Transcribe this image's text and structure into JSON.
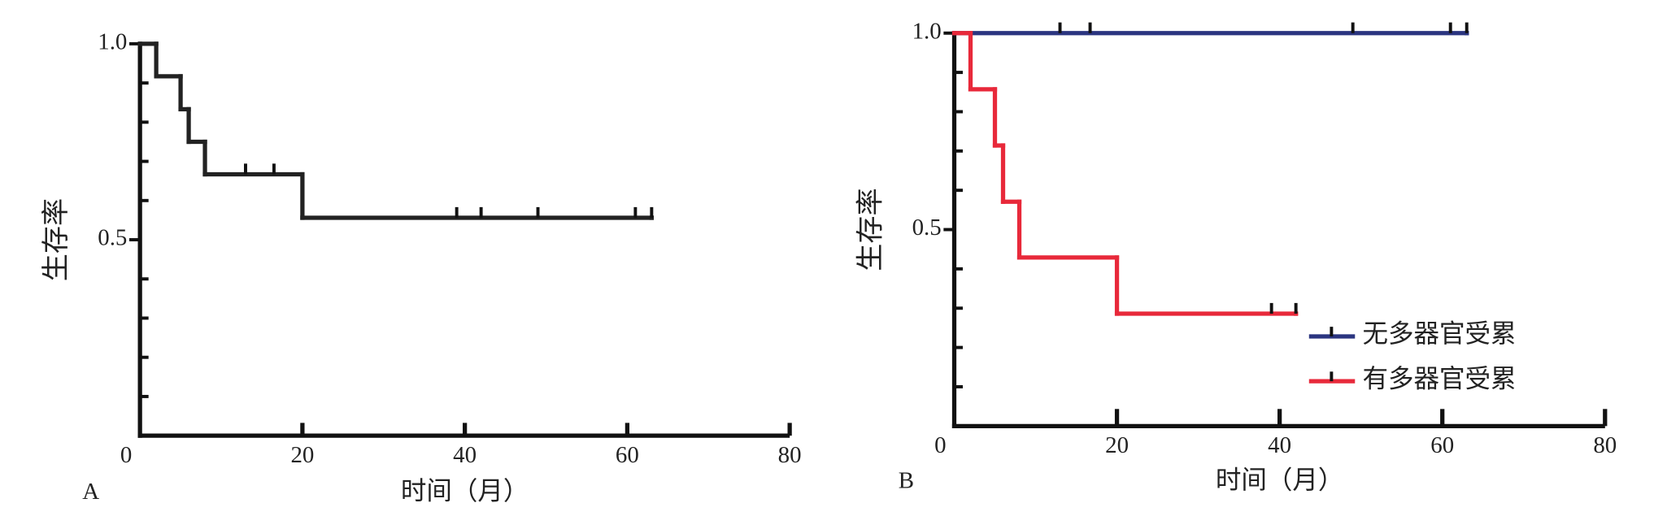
{
  "chart_data": [
    {
      "type": "line",
      "step": "post",
      "panel_label": "A",
      "xlabel": "时间（月）",
      "ylabel": "生存率",
      "xlim": [
        0,
        80
      ],
      "ylim": [
        0,
        1
      ],
      "xticks": [
        0,
        20,
        40,
        60,
        80
      ],
      "yticks": [
        0.5,
        {
          "value": 1,
          "label": "1.0"
        }
      ],
      "yminorticks": [
        0.1,
        0.2,
        0.3,
        0.4,
        0.6,
        0.7,
        0.8,
        0.9
      ],
      "series": [
        {
          "color": "#222222",
          "x": [
            0,
            2,
            5,
            6,
            8,
            20,
            63
          ],
          "values": [
            1,
            0.917,
            0.833,
            0.75,
            0.667,
            0.556,
            0.556
          ],
          "censored_x": [
            13,
            16.5,
            39,
            42,
            49,
            61,
            63
          ]
        }
      ]
    },
    {
      "type": "line",
      "step": "post",
      "panel_label": "B",
      "xlabel": "时间（月）",
      "ylabel": "生存率",
      "xlim": [
        0,
        80
      ],
      "ylim": [
        0,
        1
      ],
      "xticks": [
        0,
        20,
        40,
        60,
        80
      ],
      "yticks": [
        0.5,
        {
          "value": 1,
          "label": "1.0"
        }
      ],
      "yminorticks": [
        0.1,
        0.2,
        0.3,
        0.4,
        0.6,
        0.7,
        0.8,
        0.9
      ],
      "legend": "center right",
      "series": [
        {
          "name": "无多器官受累",
          "color": "#2b3580",
          "x": [
            0,
            63
          ],
          "values": [
            1,
            1
          ],
          "censored_x": [
            13,
            16.7,
            49,
            61,
            63
          ]
        },
        {
          "name": "有多器官受累",
          "color": "#e8293a",
          "x": [
            0,
            2,
            5,
            6,
            8,
            20,
            42
          ],
          "values": [
            1,
            0.857,
            0.714,
            0.571,
            0.429,
            0.286,
            0.286
          ],
          "censored_x": [
            39,
            42
          ]
        }
      ]
    }
  ]
}
